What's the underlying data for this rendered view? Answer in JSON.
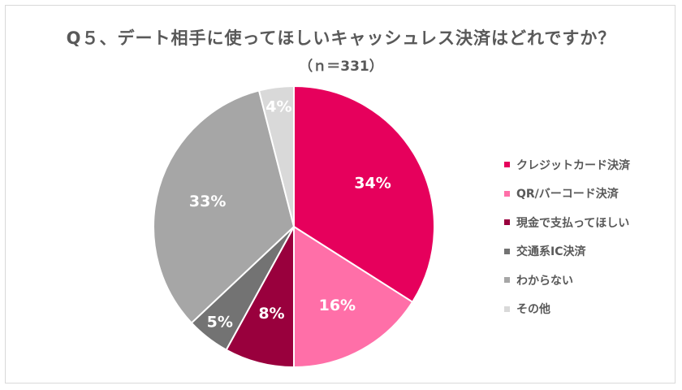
{
  "chart_data": {
    "type": "pie",
    "title": "Q５、デート相手に使ってほしいキャッシュレス決済はどれですか？",
    "subtitle": "（ｎ＝331）",
    "legend_position": "right",
    "slices": [
      {
        "label": "クレジットカード決済",
        "value": 34,
        "display": "34%",
        "color": "#e6005c",
        "label_color": "#ffffff"
      },
      {
        "label": "QR/バーコード決済",
        "value": 16,
        "display": "16%",
        "color": "#ff6fa8",
        "label_color": "#ffffff"
      },
      {
        "label": "現金で支払ってほしい",
        "value": 8,
        "display": "8%",
        "color": "#99003d",
        "label_color": "#ffffff"
      },
      {
        "label": "交通系IC決済",
        "value": 5,
        "display": "5%",
        "color": "#737373",
        "label_color": "#ffffff"
      },
      {
        "label": "わからない",
        "value": 33,
        "display": "33%",
        "color": "#a6a6a6",
        "label_color": "#ffffff"
      },
      {
        "label": "その他",
        "value": 4,
        "display": "4%",
        "color": "#d9d9d9",
        "label_color": "#ffffff"
      }
    ]
  }
}
